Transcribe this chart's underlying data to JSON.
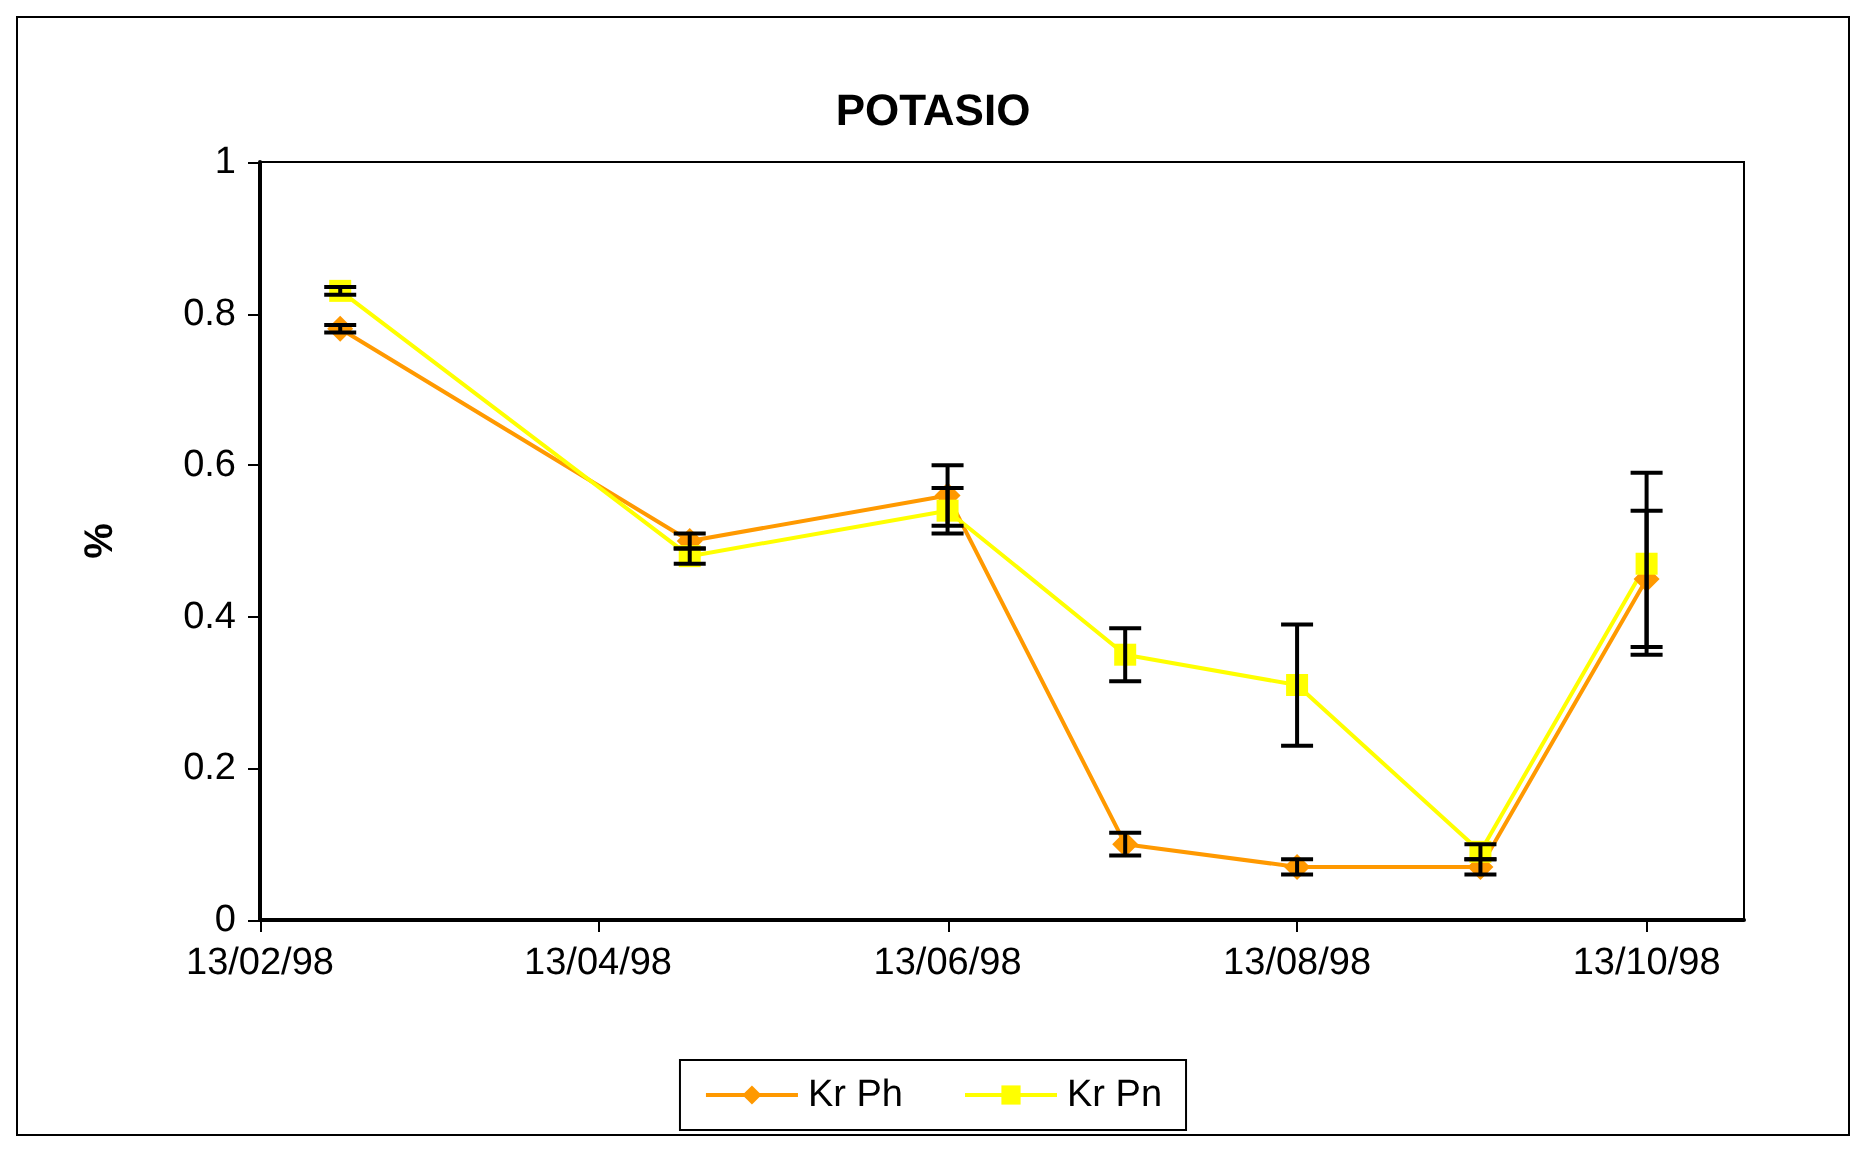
{
  "chart_data": {
    "type": "line",
    "title": "POTASIO",
    "ylabel": "%",
    "x": [
      "1998-02-27",
      "1998-04-29",
      "1998-06-13",
      "1998-07-14",
      "1998-08-13",
      "1998-09-14",
      "1998-10-13"
    ],
    "series": [
      {
        "name": "Kr Ph",
        "color": "#ff9900",
        "marker": "diamond",
        "values": [
          0.78,
          0.5,
          0.56,
          0.1,
          0.07,
          0.07,
          0.45
        ],
        "errors": [
          0.005,
          0.01,
          0.04,
          0.015,
          0.01,
          0.01,
          0.09
        ]
      },
      {
        "name": "Kr Pn",
        "color": "#ffff00",
        "marker": "square",
        "values": [
          0.83,
          0.48,
          0.54,
          0.35,
          0.31,
          0.09,
          0.47
        ],
        "errors": [
          0.005,
          0.01,
          0.03,
          0.035,
          0.08,
          0.01,
          0.12
        ]
      }
    ],
    "xlim": [
      "1998-02-13",
      "1998-10-30"
    ],
    "xticks": [
      {
        "value": "1998-02-13",
        "label": "13/02/98"
      },
      {
        "value": "1998-04-13",
        "label": "13/04/98"
      },
      {
        "value": "1998-06-13",
        "label": "13/06/98"
      },
      {
        "value": "1998-08-13",
        "label": "13/08/98"
      },
      {
        "value": "1998-10-13",
        "label": "13/10/98"
      }
    ],
    "ylim": [
      0,
      1
    ],
    "yticks": [
      0,
      0.2,
      0.4,
      0.6,
      0.8,
      1
    ],
    "grid": false,
    "legend": "bottom",
    "line_style": "solid"
  }
}
